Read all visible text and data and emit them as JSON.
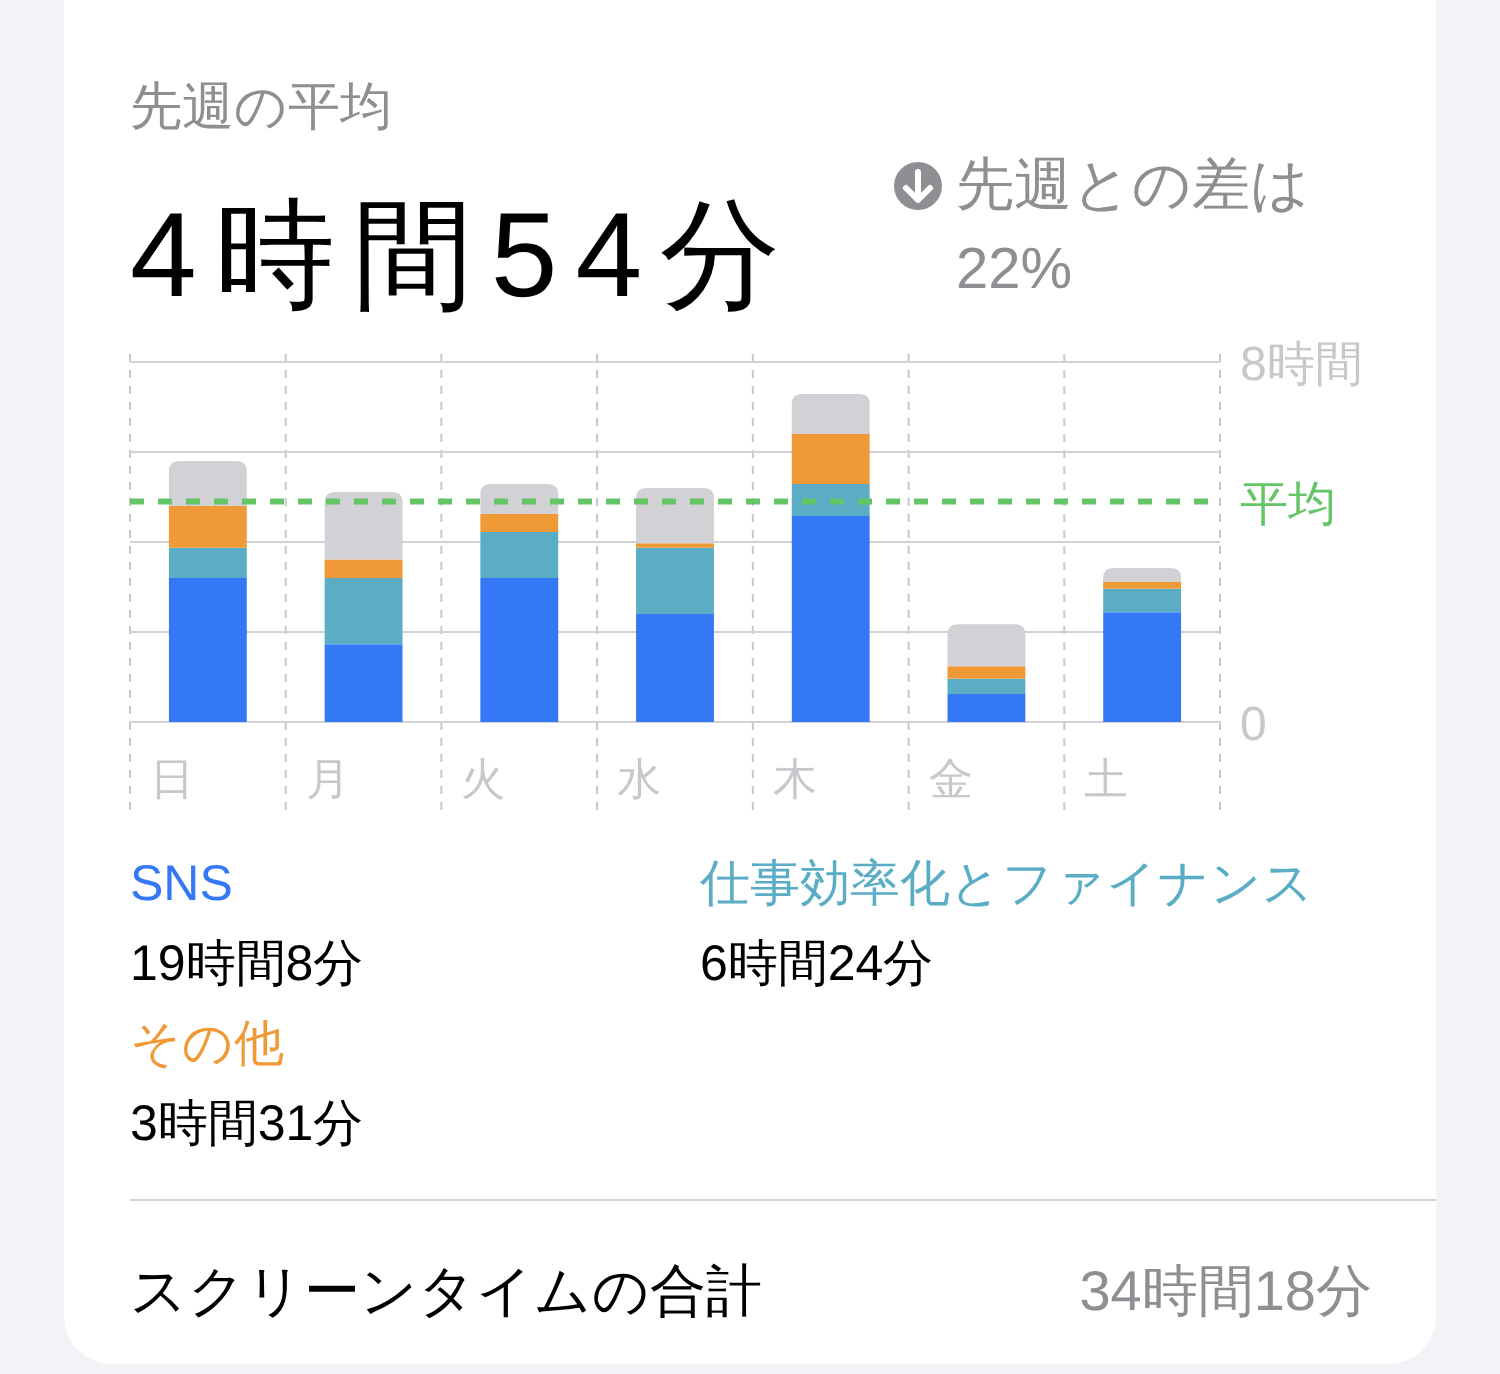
{
  "chart_data": {
    "type": "bar",
    "title": "先週の平均",
    "subtitle": "4時間54分",
    "categories": [
      "日",
      "月",
      "火",
      "水",
      "木",
      "金",
      "土"
    ],
    "stacked": true,
    "series": [
      {
        "name": "SNS",
        "color": "#3478f6",
        "values": [
          3.2,
          1.73,
          3.2,
          2.4,
          4.58,
          0.62,
          2.44
        ]
      },
      {
        "name": "仕事効率化とファイナンス",
        "color": "#5aadc5",
        "values": [
          0.67,
          1.47,
          1.02,
          1.47,
          0.71,
          0.34,
          0.52
        ]
      },
      {
        "name": "その他",
        "color": "#f09a37",
        "values": [
          0.93,
          0.41,
          0.4,
          0.1,
          1.11,
          0.28,
          0.15
        ]
      },
      {
        "color": "#d1d1d6",
        "values": [
          1.0,
          1.5,
          0.67,
          1.23,
          0.89,
          0.93,
          0.31
        ]
      }
    ],
    "ylim": [
      0,
      8
    ],
    "yticks": [
      0,
      {
        "value": 2,
        "label": null
      },
      {
        "value": 4,
        "label": null
      },
      {
        "value": 6,
        "label": null
      },
      {
        "value": 8,
        "label": "8時間"
      }
    ],
    "grid": true,
    "ref_lines": [
      {
        "axis": "y",
        "value": 4.9,
        "label": "平均",
        "color": "#65c466",
        "line_style": "dashed"
      }
    ],
    "legend": "bottom",
    "annotations": [
      "先週との差は22%",
      "19時間8分",
      "6時間24分",
      "3時間31分",
      "スクリーンタイムの合計",
      "34時間18分"
    ]
  }
}
